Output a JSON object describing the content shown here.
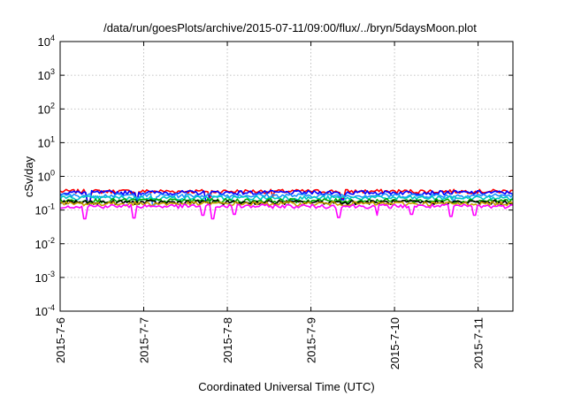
{
  "chart_data": {
    "type": "line",
    "title": "/data/run/goesPlots/archive/2015-07-11/09:00/flux/../bryn/5daysMoon.plot",
    "xlabel": "Coordinated Universal Time (UTC)",
    "ylabel": "cSv/day",
    "yscale": "log",
    "ylim": [
      0.0001,
      10000
    ],
    "yticks": [
      {
        "base": "10",
        "exp": "-4"
      },
      {
        "base": "10",
        "exp": "-3"
      },
      {
        "base": "10",
        "exp": "-2"
      },
      {
        "base": "10",
        "exp": "-1"
      },
      {
        "base": "10",
        "exp": "0"
      },
      {
        "base": "10",
        "exp": "1"
      },
      {
        "base": "10",
        "exp": "2"
      },
      {
        "base": "10",
        "exp": "3"
      },
      {
        "base": "10",
        "exp": "4"
      }
    ],
    "xlim": [
      "2015-07-06T00:00",
      "2015-07-11T10:00"
    ],
    "xticks": [
      "2015-7-6",
      "2015-7-7",
      "2015-7-8",
      "2015-7-9",
      "2015-7-10",
      "2015-7-11"
    ],
    "xtick_dates": [
      "2015-07-06",
      "2015-07-07",
      "2015-07-08",
      "2015-07-09",
      "2015-07-10",
      "2015-07-11"
    ],
    "grid": true,
    "legend": "none",
    "series": [
      {
        "color": "#ff0000",
        "base": 0.36,
        "dips": [
          {
            "x": "2015-07-06T08:00",
            "y": 0.16
          },
          {
            "x": "2015-07-06T22:00",
            "y": 0.18
          },
          {
            "x": "2015-07-07T19:00",
            "y": 0.2
          },
          {
            "x": "2015-07-08T13:00",
            "y": 0.24
          },
          {
            "x": "2015-07-09T09:00",
            "y": 0.22
          }
        ]
      },
      {
        "color": "#0000ff",
        "base": 0.33,
        "dips": [
          {
            "x": "2015-07-06T08:00",
            "y": 0.15
          },
          {
            "x": "2015-07-06T22:00",
            "y": 0.17
          },
          {
            "x": "2015-07-07T18:00",
            "y": 0.19
          },
          {
            "x": "2015-07-09T09:00",
            "y": 0.2
          }
        ]
      },
      {
        "color": "#1e90ff",
        "base": 0.27,
        "dips": [
          {
            "x": "2015-07-07T03:00",
            "y": 0.14
          },
          {
            "x": "2015-07-10T17:00",
            "y": 0.16
          }
        ]
      },
      {
        "color": "#00c8c8",
        "base": 0.23,
        "dips": []
      },
      {
        "color": "#00aa00",
        "base": 0.19,
        "dips": []
      },
      {
        "color": "#000000",
        "base": 0.17,
        "dips": []
      },
      {
        "color": "#c8a000",
        "base": 0.155,
        "dips": []
      },
      {
        "color": "#ff00ff",
        "base": 0.13,
        "dips": [
          {
            "x": "2015-07-06T07:00",
            "y": 0.055
          },
          {
            "x": "2015-07-06T21:00",
            "y": 0.058
          },
          {
            "x": "2015-07-07T17:00",
            "y": 0.07
          },
          {
            "x": "2015-07-07T20:00",
            "y": 0.055
          },
          {
            "x": "2015-07-08T02:00",
            "y": 0.075
          },
          {
            "x": "2015-07-09T08:00",
            "y": 0.06
          },
          {
            "x": "2015-07-09T19:00",
            "y": 0.07
          },
          {
            "x": "2015-07-10T05:00",
            "y": 0.075
          },
          {
            "x": "2015-07-10T16:00",
            "y": 0.065
          },
          {
            "x": "2015-07-10T23:00",
            "y": 0.07
          }
        ]
      }
    ]
  }
}
